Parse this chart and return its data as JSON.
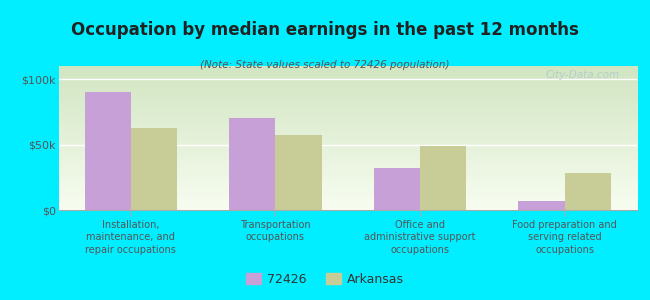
{
  "title": "Occupation by median earnings in the past 12 months",
  "subtitle": "(Note: State values scaled to 72426 population)",
  "categories": [
    "Installation,\nmaintenance, and\nrepair occupations",
    "Transportation\noccupations",
    "Office and\nadministrative support\noccupations",
    "Food preparation and\nserving related\noccupations"
  ],
  "values_72426": [
    90000,
    70000,
    32000,
    7000
  ],
  "values_arkansas": [
    63000,
    57000,
    49000,
    28000
  ],
  "color_72426": "#c8a0d8",
  "color_arkansas": "#c8cc96",
  "background_outer": "#00eeff",
  "background_inner_top": "#d8ecc8",
  "background_inner_bottom": "#f8faf0",
  "ylabel_ticks": [
    "$0",
    "$50k",
    "$100k"
  ],
  "ytick_values": [
    0,
    50000,
    100000
  ],
  "ylim": [
    0,
    110000
  ],
  "bar_width": 0.32,
  "legend_label_72426": "72426",
  "legend_label_arkansas": "Arkansas",
  "watermark": "City-Data.com",
  "title_color": "#222222",
  "subtitle_color": "#555555",
  "tick_label_color": "#555555"
}
